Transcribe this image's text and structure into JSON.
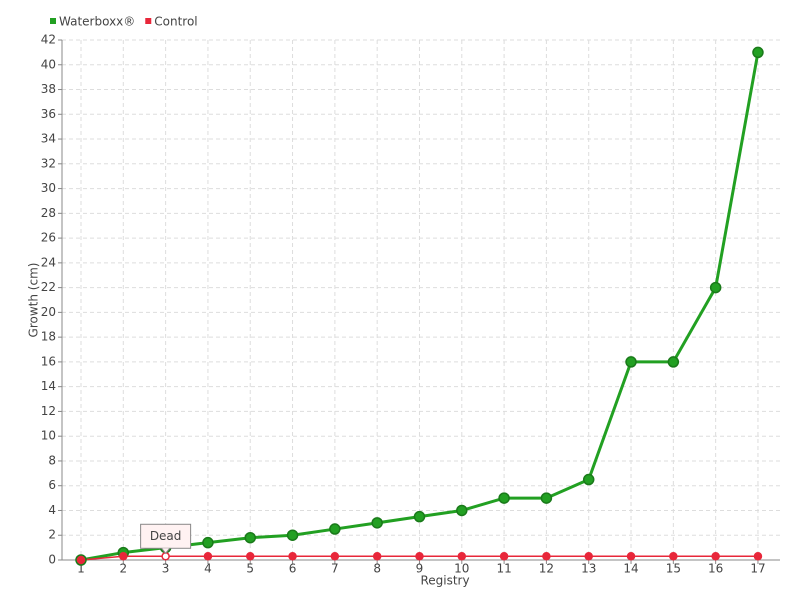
{
  "chart_data": {
    "type": "line",
    "x_label": "Registry",
    "y_label": "Growth (cm)",
    "categories": [
      "1",
      "2",
      "3",
      "4",
      "5",
      "6",
      "7",
      "8",
      "9",
      "10",
      "11",
      "12",
      "13",
      "14",
      "15",
      "16",
      "17"
    ],
    "series": [
      {
        "name": "Waterboxx®",
        "color": "#22a022",
        "values": [
          0,
          0.6,
          1.0,
          1.4,
          1.8,
          2.0,
          2.5,
          3.0,
          3.5,
          4.0,
          5,
          5,
          6.5,
          16,
          16,
          22,
          41
        ]
      },
      {
        "name": "Control",
        "color": "#e8273a",
        "values": [
          0,
          0.3,
          0.3,
          0.3,
          0.3,
          0.3,
          0.3,
          0.3,
          0.3,
          0.3,
          0.3,
          0.3,
          0.3,
          0.3,
          0.3,
          0.3,
          0.3
        ]
      }
    ],
    "ylim": [
      0,
      42
    ],
    "yticks": [
      0,
      2,
      4,
      6,
      8,
      10,
      12,
      14,
      16,
      18,
      20,
      22,
      24,
      26,
      28,
      30,
      32,
      34,
      36,
      38,
      40,
      42
    ],
    "grid": true,
    "annotations": [
      {
        "text": "Dead",
        "x": "3",
        "series": "Control"
      }
    ]
  }
}
